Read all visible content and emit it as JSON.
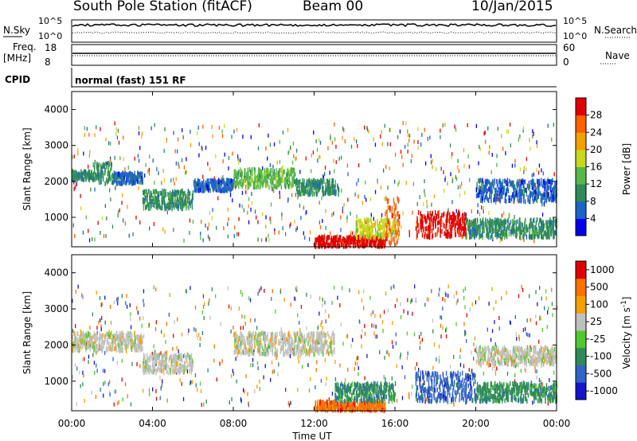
{
  "header": {
    "station": "South Pole Station (fitACF)",
    "beam": "Beam 00",
    "date": "10/Jan/2015"
  },
  "status_panel": {
    "nsky_label": "N.Sky",
    "nsky_ticks": [
      "10^5",
      "10^0"
    ],
    "nsearch_label": "N.Search",
    "nsearch_ticks": [
      "10^5",
      "10^0"
    ],
    "freq_label": "Freq.",
    "freq_unit": "[MHz]",
    "freq_ticks": [
      "18",
      "8"
    ],
    "nave_label": "Nave",
    "nave_ticks": [
      "60",
      "0"
    ],
    "cpid_label": "CPID",
    "cpid_text": "normal (fast) 151 RF"
  },
  "chart_data": [
    {
      "type": "heatmap",
      "quantity": "Power",
      "xlabel": "Time UT",
      "ylabel": "Slant Range [km]",
      "xlim": [
        "00:00",
        "24:00"
      ],
      "ylim": [
        180,
        4500
      ],
      "yticks": [
        1000,
        2000,
        3000,
        4000
      ],
      "colorbar": {
        "label": "Power [dB]",
        "ticks": [
          "4",
          "8",
          "12",
          "16",
          "20",
          "24",
          "28"
        ],
        "colors": [
          "#0000f0",
          "#1e64c8",
          "#2e8b57",
          "#58b84a",
          "#c8d820",
          "#f0a000",
          "#ff6000",
          "#e00000"
        ]
      },
      "bands": [
        {
          "t": [
            0.0,
            1.0
          ],
          "r": [
            2100,
            2350
          ],
          "level": 2
        },
        {
          "t": [
            1.0,
            2.0
          ],
          "r": [
            2000,
            2600
          ],
          "level": 2
        },
        {
          "t": [
            2.0,
            3.5
          ],
          "r": [
            2000,
            2300
          ],
          "level": 1
        },
        {
          "t": [
            3.5,
            6.0
          ],
          "r": [
            1300,
            1800
          ],
          "level": 2
        },
        {
          "t": [
            6.0,
            8.0
          ],
          "r": [
            1800,
            2100
          ],
          "level": 1
        },
        {
          "t": [
            8.0,
            11.0
          ],
          "r": [
            1900,
            2400
          ],
          "level": 3
        },
        {
          "t": [
            11.0,
            13.2
          ],
          "r": [
            1700,
            2100
          ],
          "level": 2
        },
        {
          "t": [
            12.0,
            15.5
          ],
          "r": [
            250,
            520
          ],
          "level": 7
        },
        {
          "t": [
            14.0,
            16.0
          ],
          "r": [
            500,
            1000
          ],
          "level": 4
        },
        {
          "t": [
            15.5,
            16.2
          ],
          "r": [
            300,
            1600
          ],
          "level": 6
        },
        {
          "t": [
            17.0,
            19.5
          ],
          "r": [
            500,
            1200
          ],
          "level": 7
        },
        {
          "t": [
            19.5,
            24.0
          ],
          "r": [
            500,
            1000
          ],
          "level": 2
        },
        {
          "t": [
            20.0,
            24.0
          ],
          "r": [
            1500,
            2100
          ],
          "level": 1
        }
      ]
    },
    {
      "type": "heatmap",
      "quantity": "Velocity",
      "xlabel": "Time UT",
      "ylabel": "Slant Range [km]",
      "xlim": [
        "00:00",
        "24:00"
      ],
      "ylim": [
        180,
        4500
      ],
      "yticks": [
        1000,
        2000,
        3000,
        4000
      ],
      "xticks": [
        "00:00",
        "04:00",
        "08:00",
        "12:00",
        "16:00",
        "20:00",
        "00:00"
      ],
      "colorbar": {
        "label": "Velocity [m s^-1]",
        "ticks": [
          "1000",
          "500",
          "100",
          "25",
          "-25",
          "-100",
          "-500",
          "-1000"
        ],
        "colors": [
          "#1414c8",
          "#3264c8",
          "#2e8b57",
          "#50c830",
          "#c0c0c0",
          "#f0a000",
          "#ff7000",
          "#e00000"
        ]
      },
      "bands": [
        {
          "t": [
            0.0,
            3.5
          ],
          "r": [
            1900,
            2400
          ],
          "level": 4
        },
        {
          "t": [
            3.5,
            6.0
          ],
          "r": [
            1300,
            1800
          ],
          "level": 4
        },
        {
          "t": [
            8.0,
            13.0
          ],
          "r": [
            1800,
            2400
          ],
          "level": 4
        },
        {
          "t": [
            12.0,
            15.5
          ],
          "r": [
            250,
            500
          ],
          "level": 6
        },
        {
          "t": [
            13.0,
            16.0
          ],
          "r": [
            500,
            1000
          ],
          "level": 2
        },
        {
          "t": [
            17.0,
            20.0
          ],
          "r": [
            500,
            1300
          ],
          "level": 1
        },
        {
          "t": [
            20.0,
            24.0
          ],
          "r": [
            500,
            1000
          ],
          "level": 2
        },
        {
          "t": [
            20.0,
            24.0
          ],
          "r": [
            1500,
            2000
          ],
          "level": 4
        }
      ]
    }
  ]
}
